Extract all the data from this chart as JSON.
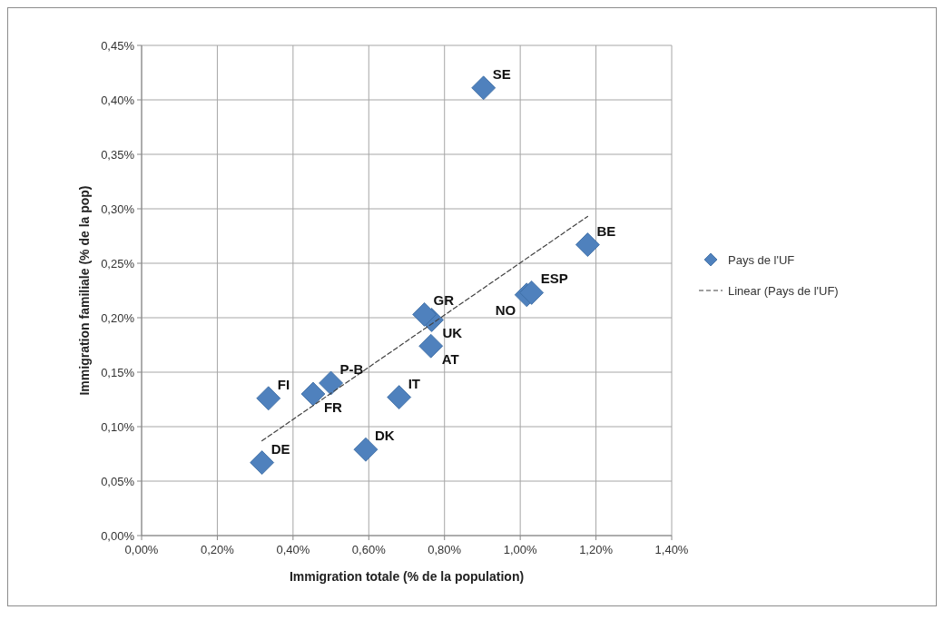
{
  "chart_data": {
    "type": "scatter",
    "xlabel": "Immigration totale (% de la population)",
    "ylabel": "Immigration familiale (% de la pop)",
    "xlim": [
      0,
      1.4
    ],
    "xticks": [
      {
        "value": 0,
        "label": "0,00%"
      },
      {
        "value": 0.2,
        "label": "0,20%"
      },
      {
        "value": 0.4,
        "label": "0,40%"
      },
      {
        "value": 0.6,
        "label": "0,60%"
      },
      {
        "value": 0.8,
        "label": "0,80%"
      },
      {
        "value": 1.0,
        "label": "1,00%"
      },
      {
        "value": 1.2,
        "label": "1,20%"
      },
      {
        "value": 1.4,
        "label": "1,40%"
      }
    ],
    "ylim": [
      0,
      0.45
    ],
    "yticks": [
      {
        "value": 0,
        "label": "0,00%"
      },
      {
        "value": 0.05,
        "label": "0,05%"
      },
      {
        "value": 0.1,
        "label": "0,10%"
      },
      {
        "value": 0.15,
        "label": "0,15%"
      },
      {
        "value": 0.2,
        "label": "0,20%"
      },
      {
        "value": 0.25,
        "label": "0,25%"
      },
      {
        "value": 0.3,
        "label": "0,30%"
      },
      {
        "value": 0.35,
        "label": "0,35%"
      },
      {
        "value": 0.4,
        "label": "0,40%"
      },
      {
        "value": 0.45,
        "label": "0,45%"
      }
    ],
    "grid": true,
    "legend": "right",
    "marker": "diamond",
    "series": [
      {
        "name": "Pays de l'UF",
        "color": "#4f81bd",
        "x": [
          0.903,
          1.178,
          1.03,
          1.017,
          0.747,
          0.766,
          0.764,
          0.68,
          0.592,
          0.335,
          0.453,
          0.5,
          0.318
        ],
        "values": [
          0.411,
          0.267,
          0.223,
          0.221,
          0.203,
          0.198,
          0.174,
          0.127,
          0.079,
          0.126,
          0.13,
          0.14,
          0.067
        ]
      },
      {
        "name": "Linear (Pays de l'UF)",
        "color": "#404040",
        "type": "line",
        "line_style": "dashed",
        "marker": "none",
        "x": [
          0.318,
          1.178
        ],
        "values": [
          0.087,
          0.293
        ]
      }
    ],
    "annotations": [
      {
        "text": "SE",
        "x": 0.903,
        "y": 0.411
      },
      {
        "text": "BE",
        "x": 1.178,
        "y": 0.267
      },
      {
        "text": "ESP",
        "x": 1.03,
        "y": 0.223
      },
      {
        "text": "NO",
        "x": 1.017,
        "y": 0.221
      },
      {
        "text": "GR",
        "x": 0.747,
        "y": 0.203
      },
      {
        "text": "UK",
        "x": 0.766,
        "y": 0.198
      },
      {
        "text": "AT",
        "x": 0.764,
        "y": 0.174
      },
      {
        "text": "IT",
        "x": 0.68,
        "y": 0.127
      },
      {
        "text": "DK",
        "x": 0.592,
        "y": 0.079
      },
      {
        "text": "FI",
        "x": 0.335,
        "y": 0.126
      },
      {
        "text": "FR",
        "x": 0.453,
        "y": 0.13
      },
      {
        "text": "P-B",
        "x": 0.5,
        "y": 0.14
      },
      {
        "text": "DE",
        "x": 0.318,
        "y": 0.067
      }
    ]
  }
}
